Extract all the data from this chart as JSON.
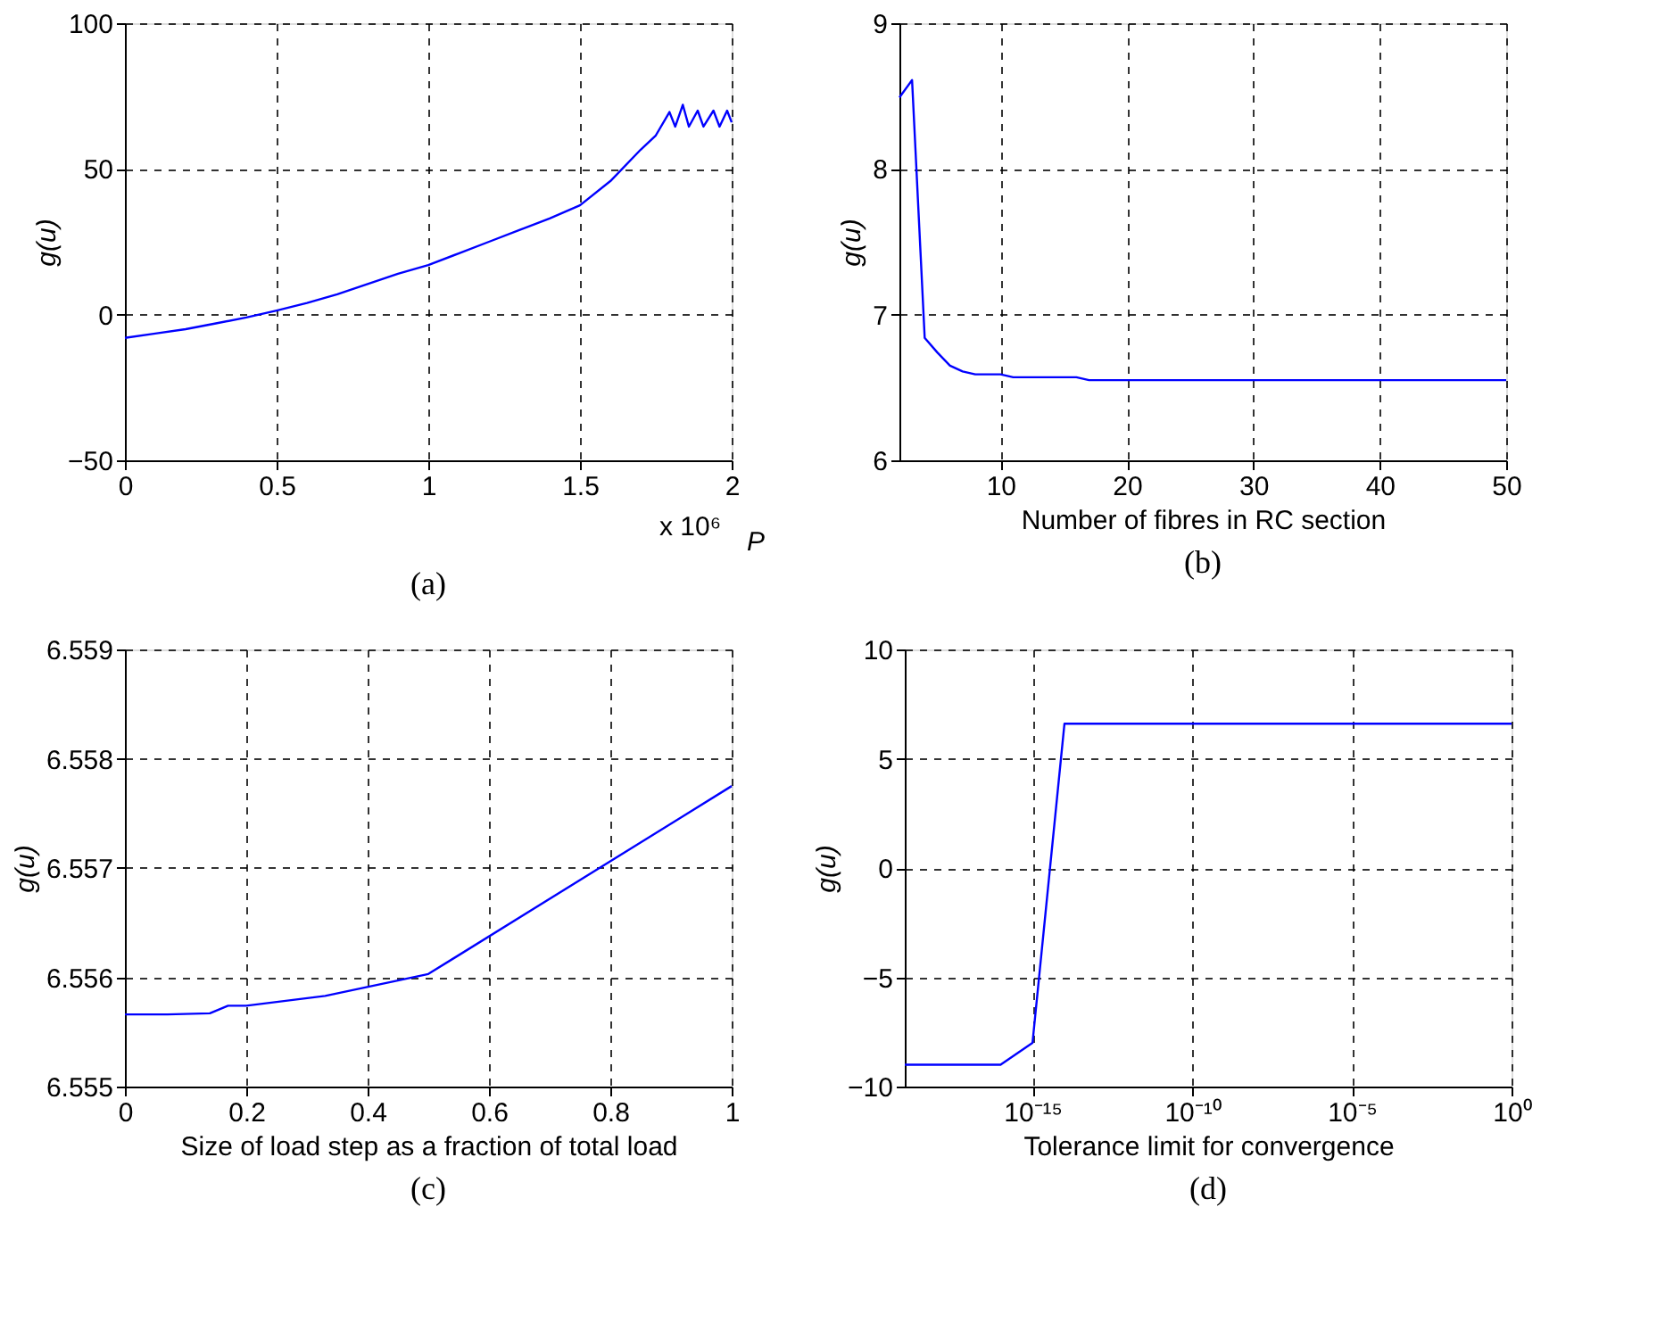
{
  "chart_data": [
    {
      "type": "line",
      "title": "(a)",
      "xlabel": "P",
      "ylabel": "g(u)",
      "annotations": [
        "x 10⁶"
      ],
      "grid": true,
      "xlim": [
        0,
        2
      ],
      "xticks": [
        0,
        0.5,
        1,
        1.5,
        2
      ],
      "ylim": [
        -50,
        100
      ],
      "yticks": [
        -50,
        0,
        50,
        100
      ],
      "x": [
        0,
        0.1,
        0.2,
        0.3,
        0.4,
        0.5,
        0.6,
        0.7,
        0.8,
        0.9,
        1,
        1.1,
        1.2,
        1.3,
        1.4,
        1.5,
        1.6,
        1.7,
        1.75,
        1.795,
        1.814,
        1.839,
        1.859,
        1.888,
        1.907,
        1.94,
        1.96,
        1.985,
        2
      ],
      "series": [
        {
          "color": "#0000ff",
          "values": [
            -8,
            -6.5,
            -5,
            -3,
            -1,
            1.4,
            4,
            7,
            10.5,
            14,
            17,
            21,
            25,
            29,
            33,
            37.5,
            45.8,
            56.6,
            61.5,
            69.5,
            64.5,
            72,
            64.5,
            70,
            64.5,
            70,
            64.5,
            70,
            66
          ]
        }
      ]
    },
    {
      "type": "line",
      "title": "(b)",
      "xlabel": "Number of fibres in RC section",
      "ylabel": "g(u)",
      "grid": true,
      "xlim": [
        2,
        50
      ],
      "xticks": [
        10,
        20,
        30,
        40,
        50
      ],
      "ylim": [
        6,
        9
      ],
      "yticks": [
        6,
        7,
        8,
        9
      ],
      "x": [
        2,
        3,
        4,
        5,
        6,
        7,
        8,
        10,
        11,
        16,
        17,
        50
      ],
      "series": [
        {
          "color": "#0000ff",
          "values": [
            8.49,
            8.61,
            6.84,
            6.74,
            6.65,
            6.61,
            6.59,
            6.59,
            6.57,
            6.57,
            6.55,
            6.55
          ]
        }
      ]
    },
    {
      "type": "line",
      "title": "(c)",
      "xlabel": "Size of load step as a fraction of total load",
      "ylabel": "g(u)",
      "grid": true,
      "xlim": [
        0,
        1
      ],
      "xticks": [
        0,
        0.2,
        0.4,
        0.6,
        0.8,
        1
      ],
      "ylim": [
        6.555,
        6.559
      ],
      "yticks": [
        6.555,
        6.556,
        6.557,
        6.558,
        6.559
      ],
      "x": [
        0,
        0.07,
        0.14,
        0.17,
        0.2,
        0.33,
        0.5,
        1
      ],
      "series": [
        {
          "color": "#0000ff",
          "values": [
            6.55566,
            6.55566,
            6.55567,
            6.55574,
            6.55574,
            6.55583,
            6.55603,
            6.55775
          ]
        }
      ]
    },
    {
      "type": "line",
      "title": "(d)",
      "xlabel": "Tolerance limit for convergence",
      "ylabel": "g(u)",
      "grid": true,
      "log": "x",
      "xlim": [
        1e-19,
        1
      ],
      "xticks": [
        {
          "value": 1e-15,
          "label": "10⁻¹⁵"
        },
        {
          "value": 1e-10,
          "label": "10⁻¹⁰"
        },
        {
          "value": 1e-05,
          "label": "10⁻⁵"
        },
        {
          "value": 1,
          "label": "10⁰"
        }
      ],
      "ylim": [
        -10,
        10
      ],
      "yticks": [
        -10,
        -5,
        0,
        5,
        10
      ],
      "x": [
        1e-19,
        1e-18,
        1e-17,
        1e-16,
        1e-15,
        1e-14,
        1e-13,
        1e-12,
        1e-11,
        1e-10,
        1e-09,
        1e-08,
        1e-07,
        1e-06,
        1e-05,
        0.0001,
        0.001,
        0.01,
        0.1,
        1
      ],
      "series": [
        {
          "color": "#0000ff",
          "values": [
            -9,
            -9,
            -9,
            -9,
            -8,
            6.6,
            6.6,
            6.6,
            6.6,
            6.6,
            6.6,
            6.6,
            6.6,
            6.6,
            6.6,
            6.6,
            6.6,
            6.6,
            6.6,
            6.6
          ]
        }
      ]
    }
  ]
}
